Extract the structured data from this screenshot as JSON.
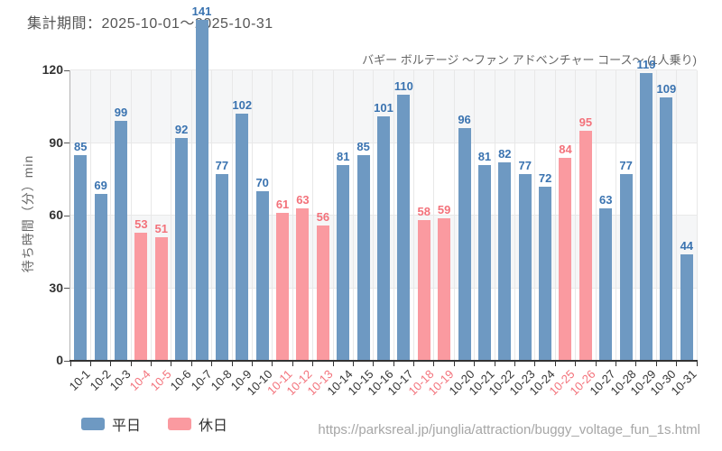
{
  "header": {
    "title": "集計期間：2025-10-01〜2025-10-31"
  },
  "chart_data": {
    "type": "bar",
    "title": "集計期間：2025-10-01〜2025-10-31",
    "subtitle": "バギー ボルテージ 〜ファン アドベンチャー コース〜 (1人乗り)",
    "ylabel": "待ち時間（分）min",
    "xlabel": "",
    "ylim": [
      0,
      120
    ],
    "yticks": [
      0,
      30,
      60,
      90,
      120
    ],
    "grid": true,
    "legend_position": "bottom-left",
    "categories": [
      "10-1",
      "10-2",
      "10-3",
      "10-4",
      "10-5",
      "10-6",
      "10-7",
      "10-8",
      "10-9",
      "10-10",
      "10-11",
      "10-12",
      "10-13",
      "10-14",
      "10-15",
      "10-16",
      "10-17",
      "10-18",
      "10-19",
      "10-20",
      "10-21",
      "10-22",
      "10-23",
      "10-24",
      "10-25",
      "10-26",
      "10-27",
      "10-28",
      "10-29",
      "10-30",
      "10-31"
    ],
    "values": [
      85,
      69,
      99,
      53,
      51,
      92,
      141,
      77,
      102,
      70,
      61,
      63,
      56,
      81,
      85,
      101,
      110,
      58,
      59,
      96,
      81,
      82,
      77,
      72,
      84,
      95,
      63,
      77,
      119,
      109,
      44
    ],
    "holiday_flags": [
      false,
      false,
      false,
      true,
      true,
      false,
      false,
      false,
      false,
      false,
      true,
      true,
      true,
      false,
      false,
      false,
      false,
      true,
      true,
      false,
      false,
      false,
      false,
      false,
      true,
      true,
      false,
      false,
      false,
      false,
      false
    ],
    "series_colors": {
      "weekday": "#6e99c2",
      "holiday": "#fa9aa0"
    },
    "label_colors": {
      "weekday": "#3a73b0",
      "holiday": "#f3727b"
    },
    "xlabel_colors": {
      "weekday": "#333333",
      "holiday": "#f3727b"
    },
    "legend": [
      {
        "name": "平日",
        "type": "weekday"
      },
      {
        "name": "休日",
        "type": "holiday"
      }
    ]
  },
  "footer": {
    "url": "https://parksreal.jp/junglia/attraction/buggy_voltage_fun_1s.html"
  }
}
